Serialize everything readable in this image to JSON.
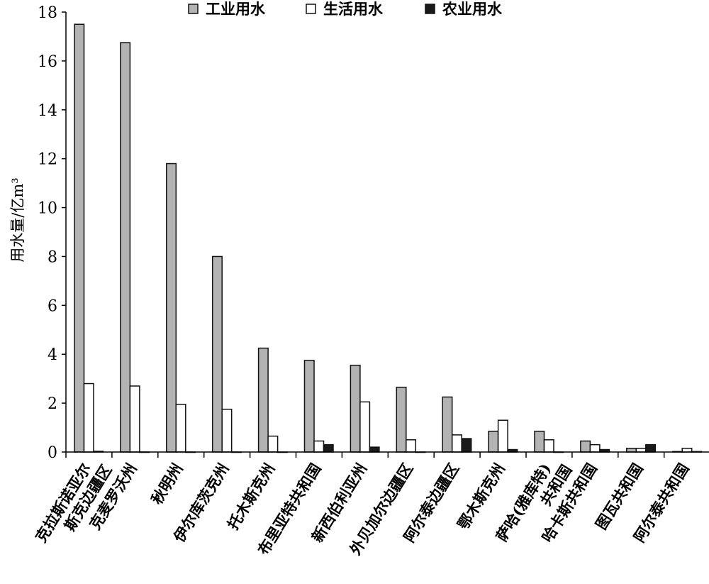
{
  "chart_data": {
    "type": "bar",
    "title": "",
    "xlabel": "",
    "ylabel": "用水量/亿m³",
    "ylim": [
      0,
      18
    ],
    "yticks": [
      0,
      2,
      4,
      6,
      8,
      10,
      12,
      14,
      16,
      18
    ],
    "grid": false,
    "legend_position": "top-center",
    "categories": [
      [
        "克拉斯诺亚尔",
        "斯克边疆区"
      ],
      [
        "克麦罗沃州"
      ],
      [
        "秋明州"
      ],
      [
        "伊尔库茨克州"
      ],
      [
        "托木斯克州"
      ],
      [
        "布里亚特共和国"
      ],
      [
        "新西伯利亚州"
      ],
      [
        "外贝加尔边疆区"
      ],
      [
        "阿尔泰边疆区"
      ],
      [
        "鄂木斯克州"
      ],
      [
        "萨哈(雅库特)",
        "共和国"
      ],
      [
        "哈卡斯共和国"
      ],
      [
        "图瓦共和国"
      ],
      [
        "阿尔泰共和国"
      ]
    ],
    "series": [
      {
        "name": "工业用水",
        "color": "#b3b3b3",
        "values": [
          17.5,
          16.75,
          11.8,
          8.0,
          4.25,
          3.75,
          3.55,
          2.65,
          2.25,
          0.85,
          0.85,
          0.45,
          0.15,
          0.02
        ]
      },
      {
        "name": "生活用水",
        "color": "#ffffff",
        "values": [
          2.8,
          2.7,
          1.95,
          1.75,
          0.65,
          0.45,
          2.05,
          0.5,
          0.7,
          1.3,
          0.5,
          0.3,
          0.15,
          0.15
        ]
      },
      {
        "name": "农业用水",
        "color": "#1a1a1a",
        "values": [
          0.03,
          0.0,
          0.0,
          0.0,
          0.0,
          0.3,
          0.2,
          0.0,
          0.55,
          0.1,
          0.0,
          0.1,
          0.3,
          0.02
        ]
      }
    ]
  }
}
